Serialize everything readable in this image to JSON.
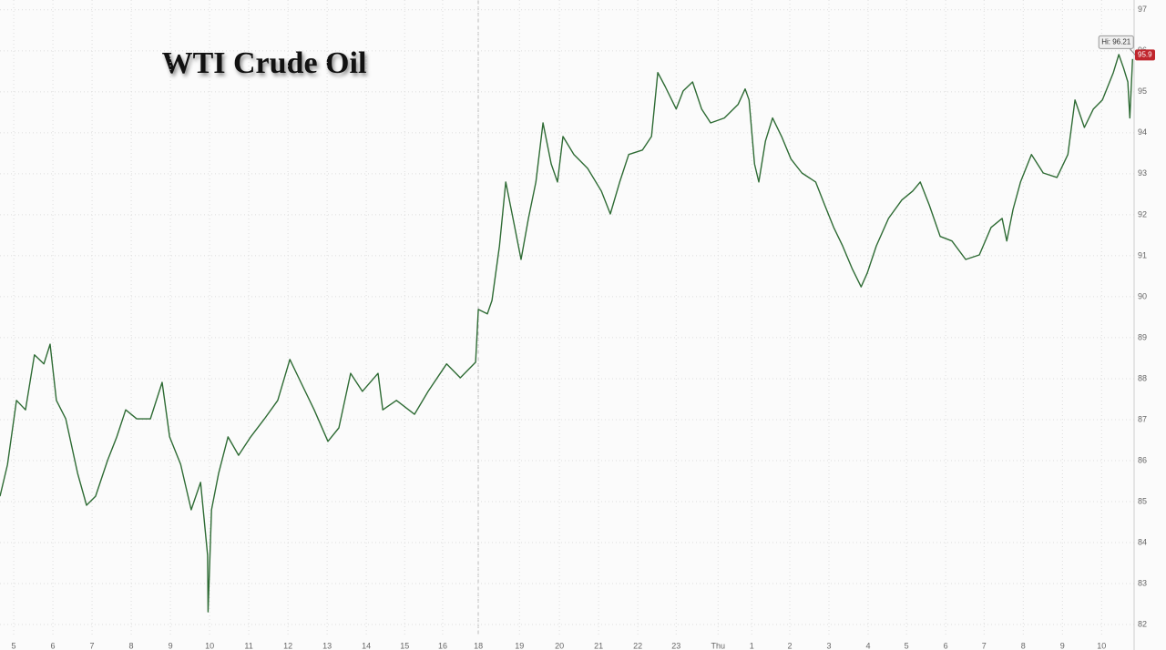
{
  "chart_data": {
    "type": "line",
    "title": "WTI Crude Oil",
    "x": [
      -0.35,
      -0.16,
      0.07,
      0.3,
      0.53,
      0.77,
      0.93,
      1.09,
      1.33,
      1.63,
      1.86,
      2.09,
      2.4,
      2.63,
      2.86,
      3.14,
      3.49,
      3.79,
      3.98,
      4.26,
      4.53,
      4.77,
      4.95,
      4.96,
      5.05,
      5.23,
      5.47,
      5.74,
      6.05,
      6.4,
      6.74,
      7.05,
      7.33,
      7.67,
      8.02,
      8.3,
      8.6,
      8.9,
      9.3,
      9.42,
      9.77,
      10.23,
      10.58,
      11.05,
      11.4,
      11.79,
      11.86,
      12.09,
      12.21,
      12.4,
      12.56,
      12.79,
      12.95,
      13.14,
      13.33,
      13.51,
      13.72,
      13.88,
      14.02,
      14.3,
      14.65,
      15.0,
      15.23,
      15.47,
      15.7,
      16.05,
      16.28,
      16.44,
      16.63,
      16.91,
      17.09,
      17.33,
      17.56,
      17.79,
      18.14,
      18.49,
      18.67,
      18.77,
      18.91,
      19.02,
      19.19,
      19.37,
      19.6,
      19.84,
      20.12,
      20.47,
      20.7,
      20.93,
      21.16,
      21.4,
      21.63,
      21.79,
      22.02,
      22.33,
      22.67,
      22.95,
      23.14,
      23.37,
      23.65,
      23.95,
      24.3,
      24.65,
      24.95,
      25.23,
      25.35,
      25.51,
      25.7,
      25.98,
      26.28,
      26.63,
      26.91,
      27.09,
      27.33,
      27.56,
      27.79,
      28.07,
      28.21,
      28.33,
      28.44,
      28.49,
      28.56
    ],
    "values": [
      85.13,
      85.9,
      87.47,
      87.24,
      88.58,
      88.36,
      88.84,
      87.47,
      87.02,
      85.69,
      84.91,
      85.13,
      86.02,
      86.58,
      87.24,
      87.02,
      87.02,
      87.91,
      86.58,
      85.91,
      84.8,
      85.47,
      83.69,
      82.31,
      84.8,
      85.69,
      86.58,
      86.13,
      86.58,
      87.02,
      87.47,
      88.47,
      87.91,
      87.24,
      86.47,
      86.8,
      88.13,
      87.69,
      88.13,
      87.24,
      87.47,
      87.13,
      87.69,
      88.36,
      88.02,
      88.4,
      89.69,
      89.58,
      89.91,
      91.24,
      92.8,
      91.69,
      90.91,
      91.91,
      92.8,
      94.24,
      93.24,
      92.8,
      93.91,
      93.47,
      93.13,
      92.58,
      92.02,
      92.8,
      93.47,
      93.58,
      93.91,
      95.47,
      95.13,
      94.58,
      95.02,
      95.24,
      94.58,
      94.24,
      94.36,
      94.69,
      95.07,
      94.8,
      93.24,
      92.8,
      93.8,
      94.36,
      93.91,
      93.36,
      93.02,
      92.8,
      92.24,
      91.69,
      91.24,
      90.69,
      90.24,
      90.58,
      91.24,
      91.91,
      92.36,
      92.58,
      92.8,
      92.24,
      91.47,
      91.36,
      90.91,
      91.02,
      91.69,
      91.91,
      91.36,
      92.13,
      92.8,
      93.47,
      93.02,
      92.91,
      93.47,
      94.8,
      94.13,
      94.58,
      94.8,
      95.47,
      95.91,
      95.58,
      95.24,
      94.36,
      95.8
    ],
    "color": "#2e6b34",
    "xlim": [
      -0.35,
      28.6
    ],
    "xticks": [
      {
        "value": 0,
        "label": "5"
      },
      {
        "value": 1,
        "label": "6"
      },
      {
        "value": 2,
        "label": "7"
      },
      {
        "value": 3,
        "label": "8"
      },
      {
        "value": 4,
        "label": "9"
      },
      {
        "value": 5,
        "label": "10"
      },
      {
        "value": 6,
        "label": "11"
      },
      {
        "value": 7,
        "label": "12"
      },
      {
        "value": 8,
        "label": "13"
      },
      {
        "value": 9,
        "label": "14"
      },
      {
        "value": 9.98,
        "label": "15"
      },
      {
        "value": 10.95,
        "label": "16"
      },
      {
        "value": 11.86,
        "label": "18"
      },
      {
        "value": 12.91,
        "label": "19"
      },
      {
        "value": 13.93,
        "label": "20"
      },
      {
        "value": 14.93,
        "label": "21"
      },
      {
        "value": 15.93,
        "label": "22"
      },
      {
        "value": 16.91,
        "label": "23"
      },
      {
        "value": 17.98,
        "label": "Thu"
      },
      {
        "value": 18.84,
        "label": "1"
      },
      {
        "value": 19.81,
        "label": "2"
      },
      {
        "value": 20.81,
        "label": "3"
      },
      {
        "value": 21.81,
        "label": "4"
      },
      {
        "value": 22.79,
        "label": "5"
      },
      {
        "value": 23.79,
        "label": "6"
      },
      {
        "value": 24.77,
        "label": "7"
      },
      {
        "value": 25.77,
        "label": "8"
      },
      {
        "value": 26.77,
        "label": "9"
      },
      {
        "value": 27.77,
        "label": "10"
      }
    ],
    "ylim": [
      81.69,
      97.24
    ],
    "yticks": [
      82,
      83,
      84,
      85,
      86,
      87,
      88,
      89,
      90,
      91,
      92,
      93,
      94,
      95,
      96,
      97
    ],
    "grid": true,
    "high": {
      "label": "Hi: 96.21",
      "value": 96.21,
      "x": 28.21
    },
    "last": {
      "label": "95.9",
      "value": 95.9,
      "color": "#c0262d"
    }
  }
}
